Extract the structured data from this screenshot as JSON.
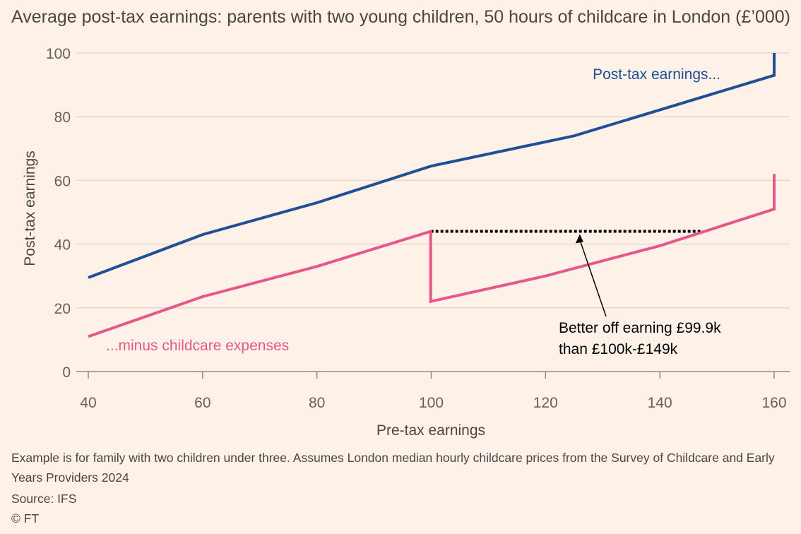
{
  "title": "Average post-tax earnings: parents with two young children, 50 hours of childcare in London (£’000)",
  "chart_data": {
    "type": "line",
    "xlabel": "Pre-tax earnings",
    "ylabel": "Post-tax earnings",
    "xlim": [
      40,
      160
    ],
    "ylim": [
      0,
      100
    ],
    "xticks": [
      40,
      60,
      80,
      100,
      120,
      140,
      160
    ],
    "yticks": [
      0,
      20,
      40,
      60,
      80,
      100
    ],
    "grid": true,
    "series": [
      {
        "name": "Post-tax earnings...",
        "color": "#1f5096",
        "points": [
          [
            40,
            29.5
          ],
          [
            60,
            43
          ],
          [
            80,
            53
          ],
          [
            100,
            64.5
          ],
          [
            125,
            74
          ],
          [
            160,
            93
          ],
          [
            160,
            100
          ]
        ]
      },
      {
        "name": "...minus childcare expenses",
        "color": "#e6588a",
        "points": [
          [
            40,
            11
          ],
          [
            60,
            23.5
          ],
          [
            80,
            33
          ],
          [
            99.9,
            44
          ],
          [
            99.9,
            22
          ],
          [
            120,
            30
          ],
          [
            140,
            39.5
          ],
          [
            160,
            51
          ],
          [
            160,
            62
          ]
        ]
      }
    ],
    "reference_line": {
      "style": "dotted",
      "color": "#000000",
      "points": [
        [
          99.9,
          44
        ],
        [
          147.5,
          44
        ]
      ]
    },
    "annotation": {
      "lines": [
        "Better off earning £99.9k",
        "than £100k-£149k"
      ],
      "arrow_target": [
        126,
        44
      ]
    }
  },
  "footer": {
    "note": "Example is for family with two children under three. Assumes London median hourly childcare prices from the Survey of Childcare and Early Years Providers 2024",
    "source": "Source: IFS",
    "copyright": "© FT"
  }
}
